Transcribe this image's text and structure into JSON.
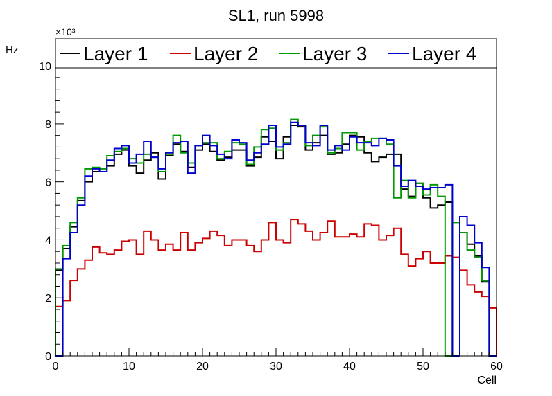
{
  "chart_data": {
    "type": "line",
    "title": "SL1, run 5998",
    "xlabel": "Cell",
    "ylabel": "Hz",
    "y_multiplier": "×10³",
    "xlim": [
      0,
      60
    ],
    "ylim": [
      0,
      10.6
    ],
    "x_ticks": [
      0,
      10,
      20,
      30,
      40,
      50,
      60
    ],
    "y_ticks": [
      0,
      2,
      4,
      6,
      8,
      10
    ],
    "grid": false,
    "legend_position": "top",
    "step": true,
    "series": [
      {
        "name": "Layer 1",
        "color": "#000000",
        "values": [
          2.95,
          3.7,
          4.45,
          5.35,
          6.0,
          6.35,
          6.35,
          6.55,
          6.95,
          7.1,
          6.55,
          6.3,
          6.75,
          7.0,
          6.1,
          6.9,
          7.3,
          7.05,
          6.5,
          7.1,
          7.3,
          7.05,
          6.75,
          6.85,
          7.1,
          7.1,
          6.55,
          6.85,
          7.55,
          7.4,
          6.8,
          7.55,
          7.95,
          7.9,
          7.1,
          7.35,
          7.6,
          6.95,
          7.0,
          7.3,
          7.6,
          7.55,
          7.0,
          6.7,
          6.85,
          6.95,
          6.95,
          5.75,
          5.5,
          5.95,
          5.45,
          5.1,
          5.2,
          5.3,
          0.0,
          4.25,
          3.85,
          3.45,
          2.55,
          0.0
        ]
      },
      {
        "name": "Layer 2",
        "color": "#cc0000",
        "values": [
          1.7,
          1.9,
          2.6,
          3.0,
          3.3,
          3.75,
          3.55,
          3.5,
          3.65,
          3.95,
          4.0,
          3.5,
          4.3,
          4.0,
          3.65,
          3.85,
          3.65,
          4.25,
          3.65,
          3.9,
          4.05,
          4.3,
          4.15,
          3.8,
          4.0,
          4.0,
          3.8,
          3.6,
          4.0,
          4.6,
          4.0,
          3.9,
          4.7,
          4.55,
          4.3,
          4.0,
          4.25,
          4.65,
          4.1,
          4.1,
          4.2,
          4.1,
          4.55,
          4.5,
          4.0,
          4.15,
          4.4,
          3.5,
          3.1,
          3.35,
          3.6,
          3.2,
          3.2,
          3.45,
          3.4,
          2.95,
          2.45,
          2.2,
          2.05,
          1.65
        ]
      },
      {
        "name": "Layer 3",
        "color": "#009900",
        "values": [
          3.0,
          3.8,
          4.6,
          5.45,
          6.45,
          6.5,
          6.45,
          6.9,
          7.05,
          7.15,
          6.8,
          6.65,
          6.95,
          6.85,
          6.35,
          6.95,
          7.6,
          7.0,
          6.65,
          7.25,
          7.35,
          7.35,
          6.8,
          7.05,
          7.35,
          7.3,
          6.6,
          7.2,
          7.8,
          7.85,
          7.1,
          7.35,
          8.15,
          7.95,
          7.25,
          7.6,
          7.9,
          7.0,
          7.15,
          7.7,
          7.7,
          7.1,
          7.4,
          7.5,
          7.5,
          7.3,
          5.45,
          6.05,
          5.45,
          5.95,
          5.55,
          5.9,
          5.5,
          0.0,
          4.6,
          4.25,
          3.65,
          3.4,
          2.6,
          0.0
        ]
      },
      {
        "name": "Layer 4",
        "color": "#0000cc",
        "values": [
          0.0,
          3.35,
          4.25,
          5.2,
          6.2,
          6.45,
          6.35,
          6.75,
          7.15,
          7.25,
          6.65,
          6.95,
          7.4,
          6.85,
          6.45,
          7.0,
          7.35,
          7.4,
          6.3,
          7.25,
          7.6,
          7.25,
          6.95,
          6.8,
          7.45,
          7.35,
          6.75,
          7.0,
          7.3,
          7.95,
          7.2,
          7.3,
          8.05,
          7.95,
          7.35,
          7.25,
          7.95,
          7.1,
          7.25,
          7.1,
          7.55,
          7.35,
          7.35,
          7.25,
          7.5,
          7.45,
          6.55,
          5.85,
          6.05,
          5.85,
          5.75,
          5.8,
          5.8,
          5.9,
          0.0,
          4.8,
          4.5,
          3.9,
          3.05,
          0.0
        ]
      }
    ]
  }
}
